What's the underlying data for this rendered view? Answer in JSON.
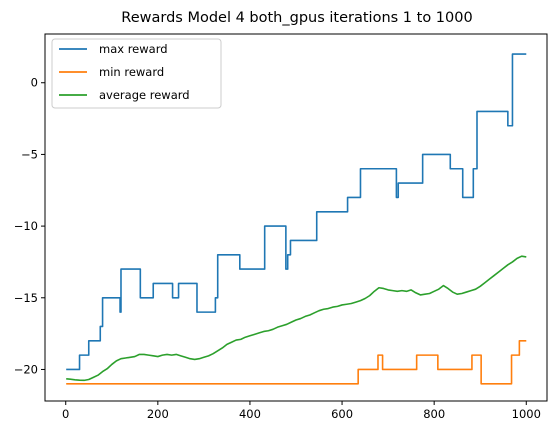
{
  "chart_data": {
    "type": "line",
    "title": "Rewards Model 4 both_gpus iterations 1 to 1000",
    "xlabel": "",
    "ylabel": "",
    "xlim": [
      -45,
      1045
    ],
    "ylim": [
      -22.2,
      3.4
    ],
    "x_ticks": [
      0,
      200,
      400,
      600,
      800,
      1000
    ],
    "x_tick_labels": [
      "0",
      "200",
      "400",
      "600",
      "800",
      "1000"
    ],
    "y_ticks": [
      0,
      -5,
      -10,
      -15,
      -20
    ],
    "y_tick_labels": [
      "0",
      "−5",
      "−10",
      "−15",
      "−20"
    ],
    "grid": false,
    "legend_position": "top-left",
    "series": [
      {
        "name": "max reward",
        "color": "#1f77b4",
        "step": true,
        "points": [
          [
            1,
            -20
          ],
          [
            30,
            -20
          ],
          [
            30,
            -19
          ],
          [
            50,
            -19
          ],
          [
            50,
            -18
          ],
          [
            75,
            -18
          ],
          [
            75,
            -17
          ],
          [
            80,
            -17
          ],
          [
            80,
            -15
          ],
          [
            118,
            -15
          ],
          [
            118,
            -16
          ],
          [
            120,
            -16
          ],
          [
            120,
            -13
          ],
          [
            162,
            -13
          ],
          [
            162,
            -15
          ],
          [
            190,
            -15
          ],
          [
            190,
            -14
          ],
          [
            232,
            -14
          ],
          [
            232,
            -15
          ],
          [
            245,
            -15
          ],
          [
            245,
            -14
          ],
          [
            285,
            -14
          ],
          [
            285,
            -16
          ],
          [
            325,
            -16
          ],
          [
            325,
            -15
          ],
          [
            330,
            -15
          ],
          [
            330,
            -12
          ],
          [
            378,
            -12
          ],
          [
            378,
            -13
          ],
          [
            432,
            -13
          ],
          [
            432,
            -10
          ],
          [
            478,
            -10
          ],
          [
            478,
            -13
          ],
          [
            482,
            -13
          ],
          [
            482,
            -12
          ],
          [
            488,
            -12
          ],
          [
            488,
            -11
          ],
          [
            545,
            -11
          ],
          [
            545,
            -9
          ],
          [
            612,
            -9
          ],
          [
            612,
            -8
          ],
          [
            640,
            -8
          ],
          [
            640,
            -6
          ],
          [
            718,
            -6
          ],
          [
            718,
            -8
          ],
          [
            722,
            -8
          ],
          [
            722,
            -7
          ],
          [
            775,
            -7
          ],
          [
            775,
            -5
          ],
          [
            835,
            -5
          ],
          [
            835,
            -6
          ],
          [
            862,
            -6
          ],
          [
            862,
            -8
          ],
          [
            885,
            -8
          ],
          [
            885,
            -6
          ],
          [
            893,
            -6
          ],
          [
            893,
            -2
          ],
          [
            960,
            -2
          ],
          [
            960,
            -3
          ],
          [
            970,
            -3
          ],
          [
            970,
            2
          ],
          [
            1000,
            2
          ]
        ]
      },
      {
        "name": "min reward",
        "color": "#ff7f0e",
        "step": true,
        "points": [
          [
            1,
            -21
          ],
          [
            635,
            -21
          ],
          [
            635,
            -20
          ],
          [
            678,
            -20
          ],
          [
            678,
            -19
          ],
          [
            688,
            -19
          ],
          [
            688,
            -20
          ],
          [
            762,
            -20
          ],
          [
            762,
            -19
          ],
          [
            808,
            -19
          ],
          [
            808,
            -20
          ],
          [
            882,
            -20
          ],
          [
            882,
            -19
          ],
          [
            902,
            -19
          ],
          [
            902,
            -21
          ],
          [
            968,
            -21
          ],
          [
            968,
            -19
          ],
          [
            985,
            -19
          ],
          [
            985,
            -18
          ],
          [
            1000,
            -18
          ]
        ]
      },
      {
        "name": "average reward",
        "color": "#2ca02c",
        "step": false,
        "points": [
          [
            1,
            -20.65
          ],
          [
            10,
            -20.68
          ],
          [
            20,
            -20.72
          ],
          [
            30,
            -20.75
          ],
          [
            40,
            -20.76
          ],
          [
            50,
            -20.7
          ],
          [
            60,
            -20.55
          ],
          [
            70,
            -20.4
          ],
          [
            80,
            -20.15
          ],
          [
            90,
            -19.95
          ],
          [
            100,
            -19.65
          ],
          [
            110,
            -19.4
          ],
          [
            120,
            -19.25
          ],
          [
            130,
            -19.2
          ],
          [
            140,
            -19.15
          ],
          [
            150,
            -19.1
          ],
          [
            160,
            -18.95
          ],
          [
            170,
            -18.95
          ],
          [
            180,
            -19.0
          ],
          [
            190,
            -19.05
          ],
          [
            200,
            -19.1
          ],
          [
            210,
            -19.0
          ],
          [
            220,
            -18.95
          ],
          [
            230,
            -19.0
          ],
          [
            240,
            -18.95
          ],
          [
            250,
            -19.05
          ],
          [
            260,
            -19.15
          ],
          [
            270,
            -19.25
          ],
          [
            280,
            -19.3
          ],
          [
            290,
            -19.25
          ],
          [
            300,
            -19.15
          ],
          [
            310,
            -19.05
          ],
          [
            320,
            -18.9
          ],
          [
            330,
            -18.7
          ],
          [
            340,
            -18.5
          ],
          [
            350,
            -18.25
          ],
          [
            360,
            -18.1
          ],
          [
            370,
            -17.95
          ],
          [
            380,
            -17.9
          ],
          [
            390,
            -17.75
          ],
          [
            400,
            -17.65
          ],
          [
            410,
            -17.55
          ],
          [
            420,
            -17.45
          ],
          [
            430,
            -17.35
          ],
          [
            440,
            -17.3
          ],
          [
            450,
            -17.2
          ],
          [
            460,
            -17.05
          ],
          [
            470,
            -16.95
          ],
          [
            480,
            -16.85
          ],
          [
            490,
            -16.7
          ],
          [
            500,
            -16.55
          ],
          [
            510,
            -16.45
          ],
          [
            520,
            -16.3
          ],
          [
            530,
            -16.2
          ],
          [
            540,
            -16.05
          ],
          [
            550,
            -15.9
          ],
          [
            560,
            -15.8
          ],
          [
            570,
            -15.75
          ],
          [
            580,
            -15.65
          ],
          [
            590,
            -15.6
          ],
          [
            600,
            -15.5
          ],
          [
            610,
            -15.45
          ],
          [
            620,
            -15.4
          ],
          [
            630,
            -15.3
          ],
          [
            640,
            -15.2
          ],
          [
            650,
            -15.05
          ],
          [
            660,
            -14.85
          ],
          [
            670,
            -14.55
          ],
          [
            680,
            -14.3
          ],
          [
            690,
            -14.35
          ],
          [
            700,
            -14.45
          ],
          [
            710,
            -14.5
          ],
          [
            720,
            -14.55
          ],
          [
            730,
            -14.5
          ],
          [
            740,
            -14.55
          ],
          [
            750,
            -14.45
          ],
          [
            760,
            -14.65
          ],
          [
            770,
            -14.8
          ],
          [
            780,
            -14.75
          ],
          [
            790,
            -14.7
          ],
          [
            800,
            -14.55
          ],
          [
            810,
            -14.4
          ],
          [
            820,
            -14.15
          ],
          [
            830,
            -14.35
          ],
          [
            840,
            -14.6
          ],
          [
            850,
            -14.75
          ],
          [
            860,
            -14.7
          ],
          [
            870,
            -14.6
          ],
          [
            880,
            -14.5
          ],
          [
            890,
            -14.4
          ],
          [
            900,
            -14.2
          ],
          [
            910,
            -13.95
          ],
          [
            920,
            -13.7
          ],
          [
            930,
            -13.45
          ],
          [
            940,
            -13.2
          ],
          [
            950,
            -12.95
          ],
          [
            960,
            -12.7
          ],
          [
            970,
            -12.5
          ],
          [
            980,
            -12.25
          ],
          [
            990,
            -12.1
          ],
          [
            1000,
            -12.15
          ]
        ]
      }
    ]
  }
}
